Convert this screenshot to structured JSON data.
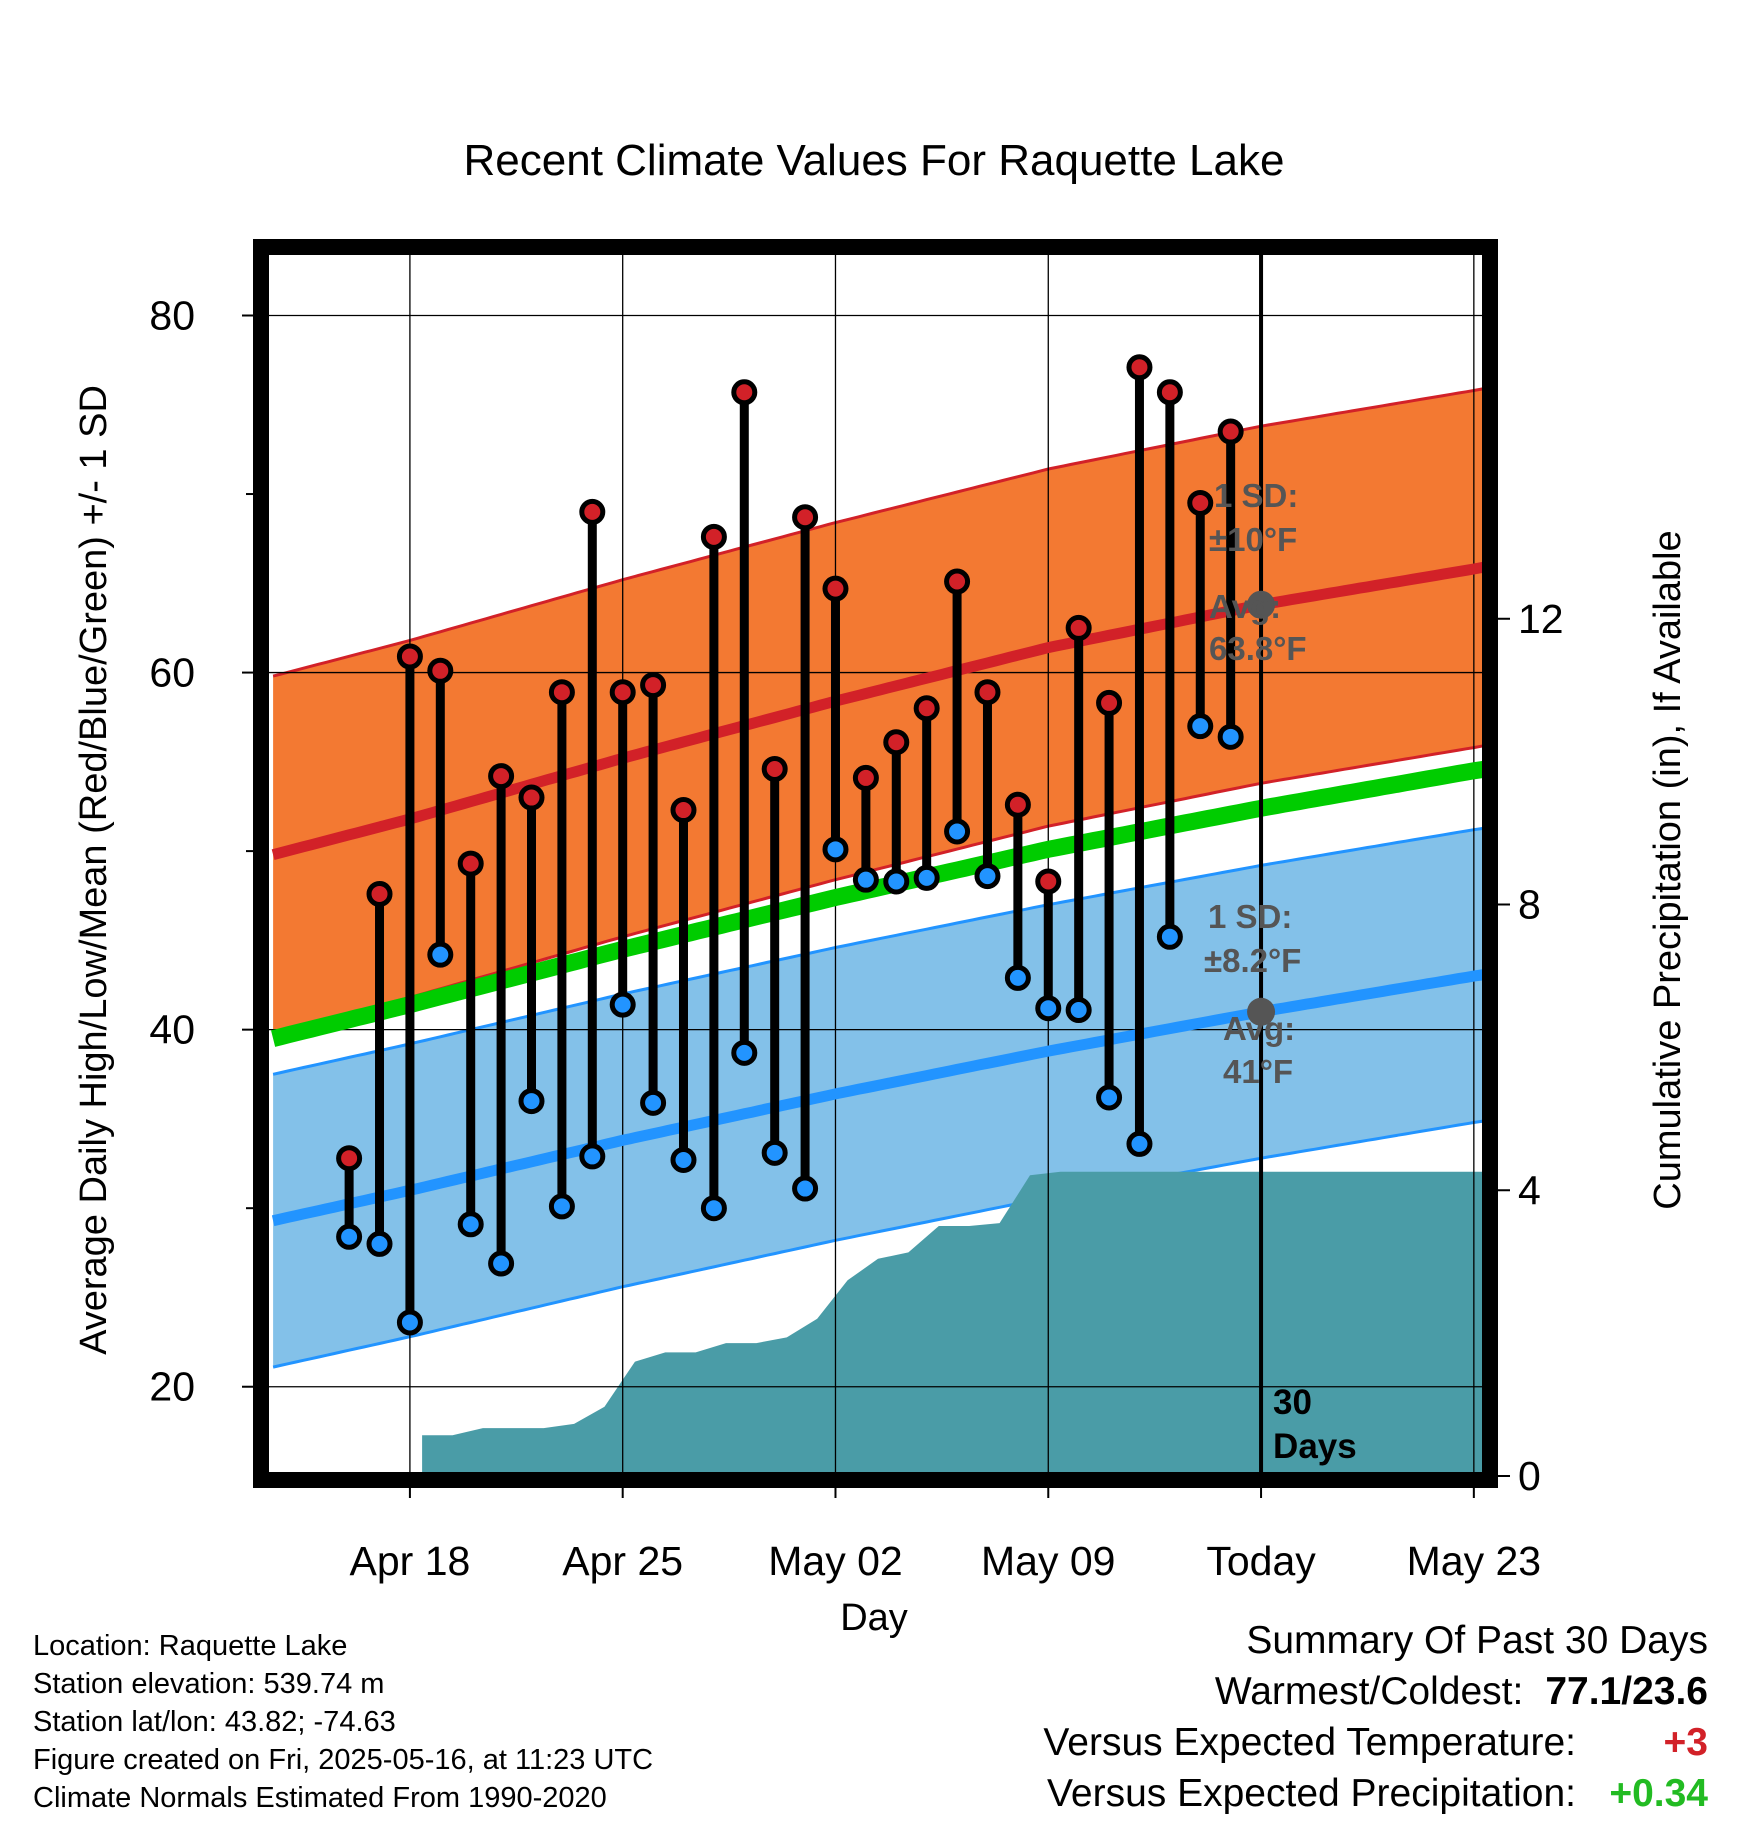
{
  "chart_data": {
    "type": "climate-range",
    "title": "Recent Climate Values For Raquette Lake",
    "xlabel": "Day",
    "ylabel": "Average Daily High/Low/Mean (Red/Blue/Green) +/- 1 SD",
    "y2label": "Cumulative Precipitation (in), If Available",
    "ylim": [
      15,
      83.5
    ],
    "y_ticks": [
      20,
      40,
      60,
      80
    ],
    "y2lim": [
      0,
      17.12
    ],
    "y2_ticks": [
      0,
      4,
      8,
      12
    ],
    "xlim": [
      -4.8,
      35.4
    ],
    "x_ticks": [
      {
        "day": 0,
        "label": "Apr 18"
      },
      {
        "day": 7,
        "label": "Apr 25"
      },
      {
        "day": 14,
        "label": "May 02"
      },
      {
        "day": 21,
        "label": "May 09"
      },
      {
        "day": 28,
        "label": "Today"
      },
      {
        "day": 35,
        "label": "May 23"
      }
    ],
    "grid": true,
    "today_day": 28,
    "today_label": "30 Days",
    "normals": {
      "day": [
        -4.5,
        0,
        7,
        14,
        21,
        28,
        35,
        36.6
      ],
      "high_avg": [
        49.8,
        51.8,
        55.2,
        58.4,
        61.4,
        63.8,
        65.8,
        66.3
      ],
      "high_sd": 10,
      "low_avg": [
        29.3,
        31.0,
        33.8,
        36.4,
        38.8,
        41.0,
        43.0,
        43.4
      ],
      "low_sd": 8.2,
      "mean_avg": [
        39.5,
        41.4,
        44.5,
        47.4,
        50.1,
        52.4,
        54.5,
        54.9
      ]
    },
    "daily": {
      "day": [
        -2,
        -1,
        0,
        1,
        2,
        3,
        4,
        5,
        6,
        7,
        8,
        9,
        10,
        11,
        12,
        13,
        14,
        15,
        16,
        17,
        18,
        19,
        20,
        21,
        22,
        23,
        24,
        25,
        26,
        27
      ],
      "high": [
        32.8,
        47.6,
        60.9,
        60.1,
        49.3,
        54.2,
        53.0,
        58.9,
        69.0,
        58.9,
        59.3,
        52.3,
        67.6,
        75.7,
        54.6,
        68.7,
        64.7,
        54.1,
        56.1,
        58.0,
        65.1,
        58.9,
        52.6,
        48.3,
        62.5,
        58.3,
        77.1,
        75.7,
        69.5,
        73.5
      ],
      "low": [
        28.4,
        28.0,
        23.6,
        44.2,
        29.1,
        26.9,
        36.0,
        30.1,
        32.9,
        41.4,
        35.9,
        32.7,
        30.0,
        38.7,
        33.1,
        31.1,
        50.1,
        48.4,
        48.3,
        48.5,
        51.1,
        48.6,
        42.9,
        41.2,
        41.1,
        36.2,
        33.6,
        45.2,
        57.0,
        56.4
      ]
    },
    "precip": {
      "day": [
        0.4,
        1.4,
        2.4,
        3.4,
        4.4,
        5.4,
        6.4,
        7.4,
        8.4,
        9.4,
        10.4,
        11.4,
        12.4,
        13.4,
        14.4,
        15.4,
        16.4,
        17.4,
        18.4,
        19.4,
        20.4,
        21.4,
        22.4,
        35.4
      ],
      "value": [
        0.57,
        0.57,
        0.67,
        0.67,
        0.67,
        0.73,
        0.97,
        1.6,
        1.73,
        1.73,
        1.86,
        1.86,
        1.94,
        2.2,
        2.74,
        3.04,
        3.13,
        3.5,
        3.5,
        3.54,
        4.21,
        4.26,
        4.26,
        4.26
      ]
    },
    "annotations": {
      "high_sd_label": "1 SD:",
      "high_sd_value": "±10°F",
      "high_avg_label": "Avg:",
      "high_avg_value": "63.8°F",
      "low_sd_label": "1 SD:",
      "low_sd_value": "±8.2°F",
      "low_avg_label": "Avg:",
      "low_avg_value": "41°F"
    },
    "colors": {
      "high_band": "#f37932",
      "high_line": "#d22128",
      "low_band": "#83c1e9",
      "low_line": "#2294ff",
      "mean_line": "#00cc00",
      "precip_fill": "#4a9ca7",
      "high_dot": "#d22128",
      "low_dot": "#2294ff",
      "avg_dot": "#555555"
    }
  },
  "info": {
    "location": "Location: Raquette Lake",
    "elevation": "Station elevation: 539.74 m",
    "latlon": "Station lat/lon: 43.82; -74.63",
    "created": "Figure created on Fri, 2025-05-16, at 11:23 UTC",
    "normals": "Climate Normals Estimated From 1990-2020"
  },
  "summary": {
    "title": "Summary Of Past 30 Days",
    "warm_cold_label": "Warmest/Coldest:",
    "warm_cold_value": "77.1/23.6",
    "temp_label": "Versus Expected Temperature:",
    "temp_value": "+3",
    "temp_color": "#d22128",
    "precip_label": "Versus Expected Precipitation:",
    "precip_value": "+0.34",
    "precip_color": "#22bb22"
  }
}
